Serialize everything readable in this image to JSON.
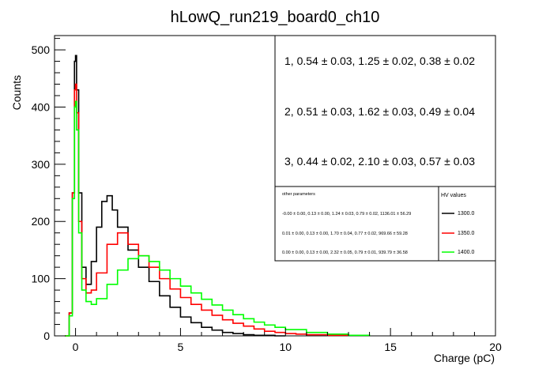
{
  "chart_data": {
    "type": "line",
    "title": "hLowQ_run219_board0_ch10",
    "xlabel": "Charge (pC)",
    "ylabel": "Counts",
    "xlim": [
      -1,
      20
    ],
    "ylim": [
      0,
      525
    ],
    "x_ticks": [
      0,
      5,
      10,
      15,
      20
    ],
    "y_ticks": [
      0,
      100,
      200,
      300,
      400,
      500
    ],
    "grid": false,
    "fit_results": [
      "1, 0.54 ± 0.03, 1.25 ± 0.02, 0.38 ± 0.02",
      "2, 0.51 ± 0.03, 1.62 ± 0.03, 0.49 ± 0.04",
      "3, 0.44 ± 0.02, 2.10 ± 0.03, 0.57 ± 0.03"
    ],
    "other_parameters": {
      "header": "other parameters",
      "rows": [
        "-0.00 ± 0.00, 0.13 ± 0.00, 1.24 ± 0.03, 0.79 ± 0.02, 1136.01 ± 56.29",
        "0.01 ± 0.00, 0.13 ± 0.00, 1.70 ± 0.04, 0.77 ± 0.02, 969.66 ± 59.28",
        "0.00 ± 0.00, 0.13 ± 0.00, 2.32 ± 0.05, 0.79 ± 0.01, 939.79 ± 36.58"
      ]
    },
    "legend": {
      "header": "HV values",
      "placement": "top-right"
    },
    "series": [
      {
        "name": "1300.0",
        "color": "#000000",
        "x": [
          -0.5,
          -0.3,
          -0.15,
          -0.05,
          0.0,
          0.05,
          0.15,
          0.3,
          0.5,
          0.75,
          1.0,
          1.25,
          1.5,
          1.75,
          2.0,
          2.5,
          3.0,
          3.5,
          4.0,
          4.5,
          5.0,
          5.5,
          6.0,
          6.5,
          7.0,
          7.5,
          8.0,
          8.5,
          9.0,
          9.5,
          10.0
        ],
        "y": [
          0,
          40,
          250,
          480,
          490,
          430,
          250,
          120,
          90,
          130,
          190,
          235,
          245,
          220,
          190,
          150,
          120,
          95,
          70,
          50,
          33,
          23,
          15,
          10,
          6,
          4,
          2,
          1,
          1,
          0,
          0
        ]
      },
      {
        "name": "1350.0",
        "color": "#ff0000",
        "x": [
          -0.5,
          -0.3,
          -0.15,
          -0.05,
          0.0,
          0.05,
          0.15,
          0.3,
          0.5,
          0.75,
          1.0,
          1.5,
          2.0,
          2.5,
          3.0,
          3.5,
          4.0,
          4.5,
          5.0,
          5.5,
          6.0,
          6.5,
          7.0,
          7.5,
          8.0,
          8.5,
          9.0,
          9.5,
          10.0,
          10.5,
          11.0,
          12.0,
          13.0
        ],
        "y": [
          0,
          40,
          250,
          430,
          440,
          390,
          200,
          100,
          75,
          80,
          110,
          160,
          180,
          160,
          140,
          120,
          100,
          82,
          67,
          55,
          45,
          36,
          28,
          22,
          17,
          12,
          8,
          6,
          4,
          3,
          2,
          1,
          0
        ]
      },
      {
        "name": "1400.0",
        "color": "#00ff00",
        "x": [
          -0.5,
          -0.3,
          -0.15,
          -0.05,
          0.0,
          0.05,
          0.15,
          0.3,
          0.5,
          0.75,
          1.0,
          1.5,
          2.0,
          2.5,
          3.0,
          3.5,
          4.0,
          4.5,
          5.0,
          5.5,
          6.0,
          6.5,
          7.0,
          7.5,
          8.0,
          8.5,
          9.0,
          9.5,
          10.0,
          11.0,
          12.0,
          13.0,
          14.0
        ],
        "y": [
          0,
          35,
          240,
          400,
          410,
          360,
          180,
          80,
          60,
          55,
          65,
          90,
          115,
          135,
          140,
          130,
          115,
          100,
          87,
          75,
          64,
          54,
          45,
          37,
          30,
          24,
          19,
          15,
          11,
          6,
          3,
          1,
          0
        ]
      }
    ]
  }
}
